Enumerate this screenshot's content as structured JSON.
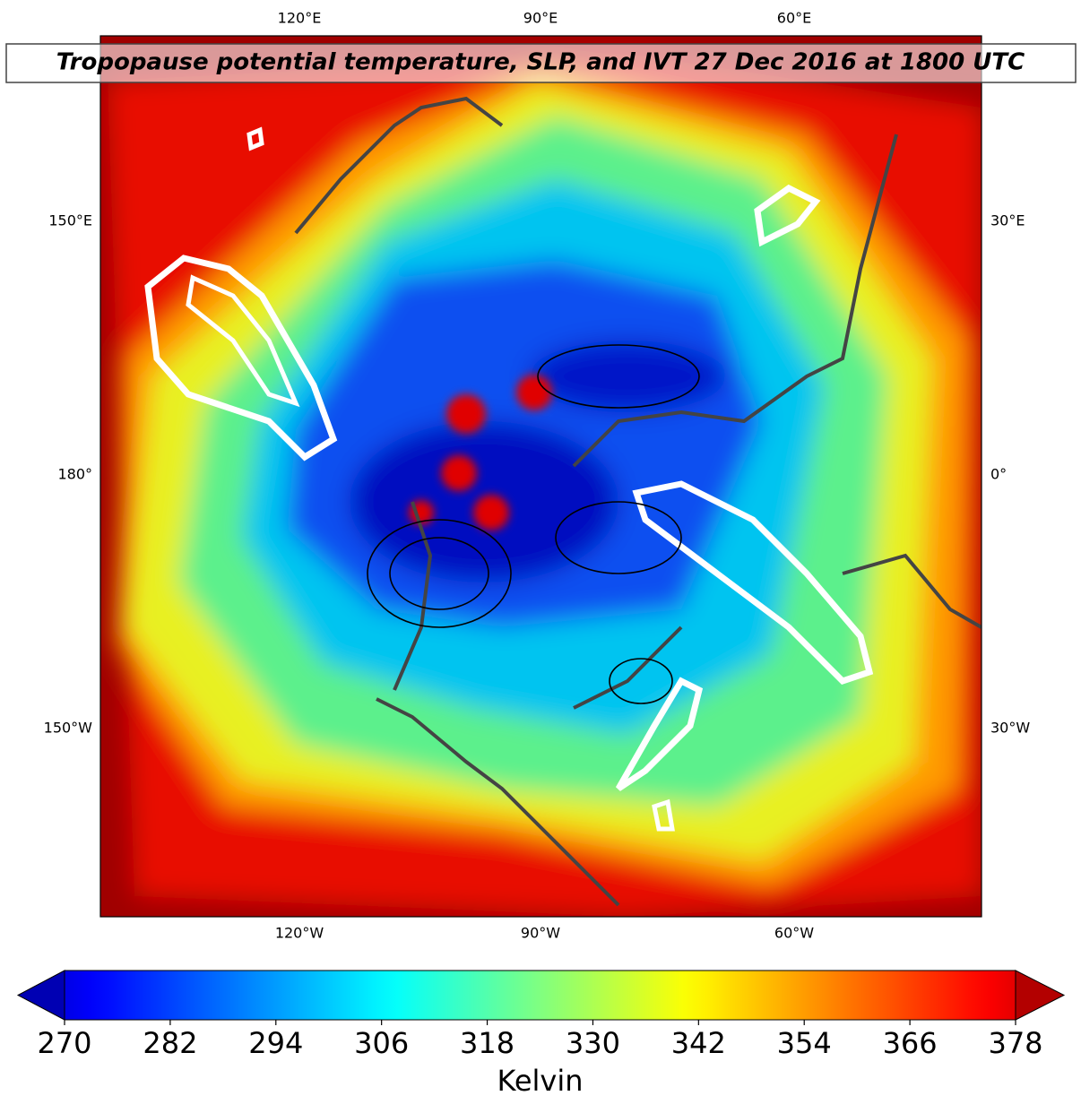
{
  "title": "Tropopause potential temperature, SLP, and IVT 27 Dec 2016 at 1800 UTC",
  "map": {
    "lon_labels_top": [
      "120°E",
      "90°E",
      "60°E"
    ],
    "lon_labels_bottom": [
      "120°W",
      "90°W",
      "60°W"
    ],
    "lon_labels_left": [
      "150°E",
      "180°",
      "150°W"
    ],
    "lon_labels_right": [
      "30°E",
      "0°",
      "30°W"
    ]
  },
  "colorbar": {
    "label": "Kelvin",
    "colormap": "jet",
    "range": [
      270,
      378
    ],
    "ticks": [
      270,
      282,
      294,
      306,
      318,
      330,
      342,
      354,
      366,
      378
    ]
  }
}
